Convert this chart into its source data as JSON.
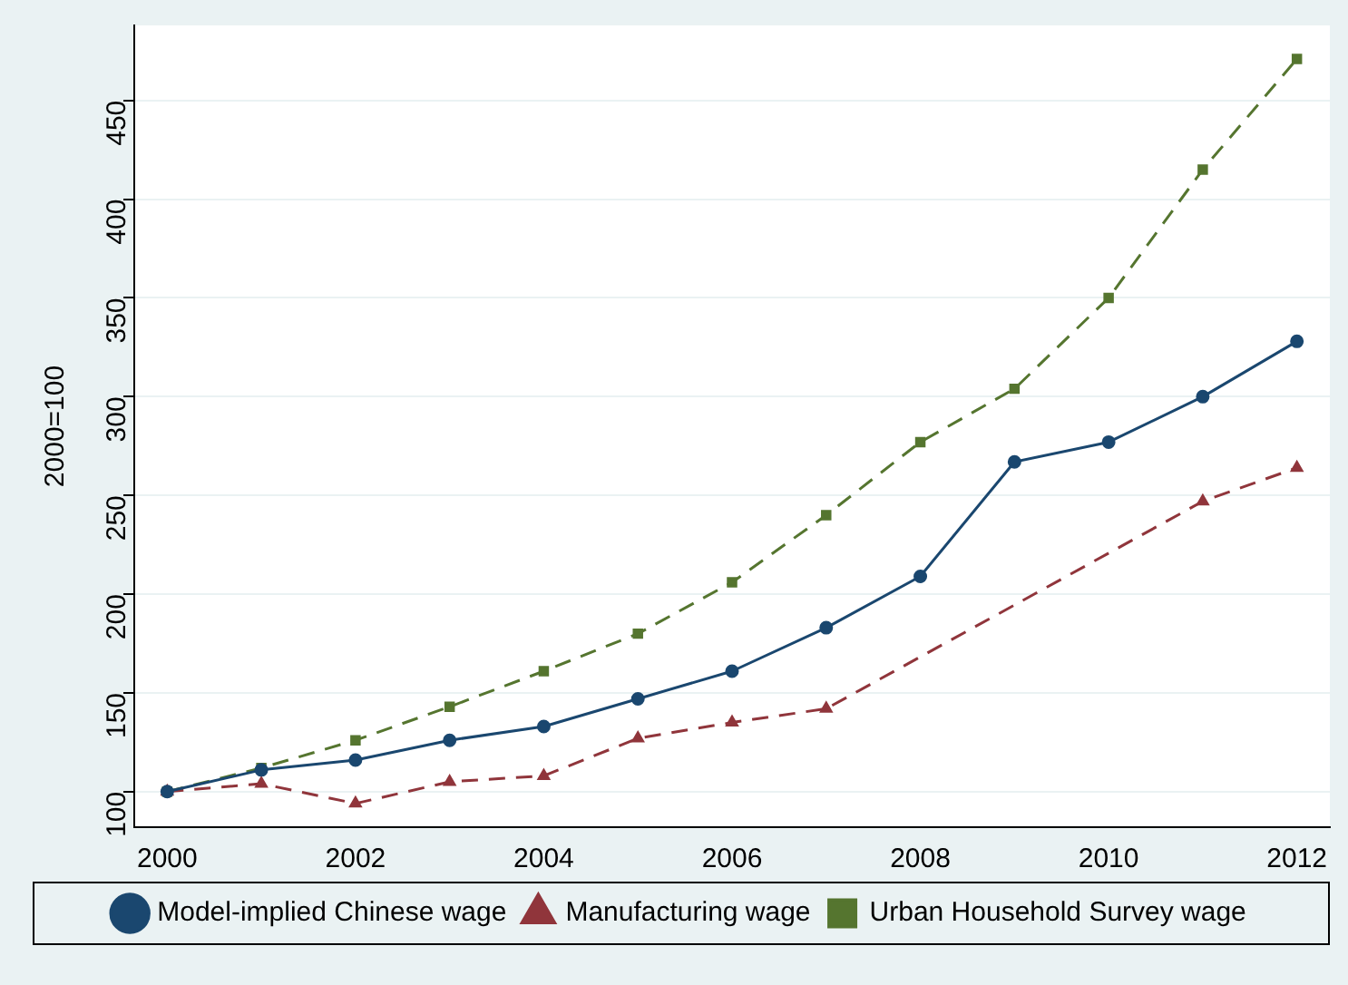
{
  "chart_data": {
    "type": "line",
    "ylabel": "2000=100",
    "x": [
      2000,
      2001,
      2002,
      2003,
      2004,
      2005,
      2006,
      2007,
      2008,
      2009,
      2010,
      2011,
      2012
    ],
    "xlim": [
      1999.65,
      2012.35
    ],
    "xticks": [
      2000,
      2002,
      2004,
      2006,
      2008,
      2010,
      2012
    ],
    "ylim": [
      82,
      488
    ],
    "yticks": [
      100,
      150,
      200,
      250,
      300,
      350,
      400,
      450
    ],
    "grid": "y",
    "legend": "bottom",
    "series": [
      {
        "name": "Model-implied Chinese wage",
        "color": "#1a476f",
        "marker": "circle",
        "line_style": "solid",
        "values": [
          100,
          111,
          116,
          126,
          133,
          147,
          161,
          183,
          209,
          267,
          277,
          300,
          328
        ]
      },
      {
        "name": "Manufacturing wage",
        "color": "#90353b",
        "marker": "triangle",
        "line_style": "dashed",
        "values": [
          100,
          104,
          94,
          105,
          108,
          127,
          135,
          142,
          null,
          null,
          null,
          247,
          264
        ]
      },
      {
        "name": "Urban Household Survey wage",
        "color": "#55752f",
        "marker": "square",
        "line_style": "dashed",
        "values": [
          100,
          112,
          126,
          143,
          161,
          180,
          206,
          240,
          277,
          304,
          350,
          415,
          471
        ]
      }
    ]
  }
}
